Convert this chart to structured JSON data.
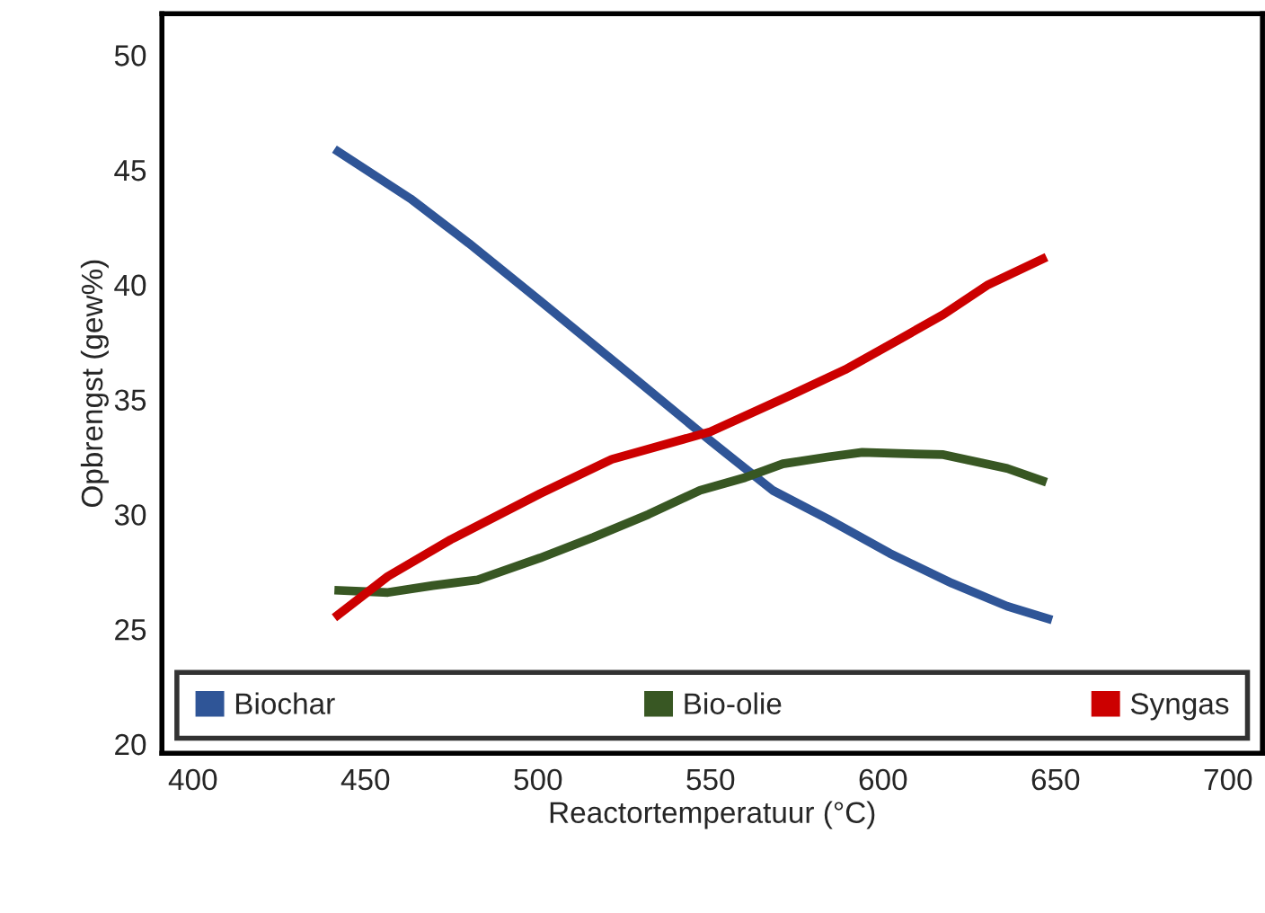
{
  "chart_data": {
    "type": "line",
    "xlabel": "Reactortemperatuur (°C)",
    "ylabel": "Opbrengst (gew%)",
    "xlim": [
      391,
      710
    ],
    "ylim": [
      19.6,
      51.8
    ],
    "xticks": [
      400,
      450,
      500,
      550,
      600,
      650,
      700
    ],
    "yticks": [
      20,
      25,
      30,
      35,
      40,
      45,
      50
    ],
    "grid": false,
    "legend": "bottom",
    "marker": "none",
    "line_style": "solid",
    "series": [
      {
        "name": "Biochar",
        "color": "#2f5597",
        "x": [
          441,
          463,
          480,
          500.6,
          526.6,
          550,
          568,
          584,
          602,
          620,
          636,
          649
        ],
        "values": [
          45.9,
          43.75,
          41.8,
          39.3,
          36.1,
          33.2,
          31.05,
          29.8,
          28.3,
          27.0,
          26.0,
          25.4
        ]
      },
      {
        "name": "Bio-olie",
        "color": "#385723",
        "x": [
          441,
          456.5,
          469.5,
          482.5,
          500.6,
          516,
          532,
          547,
          560,
          571,
          584,
          594,
          604.5,
          617.5,
          636,
          647.4
        ],
        "values": [
          26.7,
          26.6,
          26.9,
          27.15,
          28.1,
          29.0,
          30.0,
          31.05,
          31.6,
          32.2,
          32.5,
          32.7,
          32.65,
          32.6,
          32.0,
          31.4
        ]
      },
      {
        "name": "Syngas",
        "color": "#cc0000",
        "x": [
          441,
          456.5,
          474.7,
          500.6,
          521.4,
          550,
          573.4,
          589,
          604.5,
          617.5,
          630.5,
          647.4
        ],
        "values": [
          25.5,
          27.3,
          28.9,
          30.9,
          32.4,
          33.6,
          35.2,
          36.3,
          37.6,
          38.7,
          40.0,
          41.2
        ]
      }
    ]
  }
}
